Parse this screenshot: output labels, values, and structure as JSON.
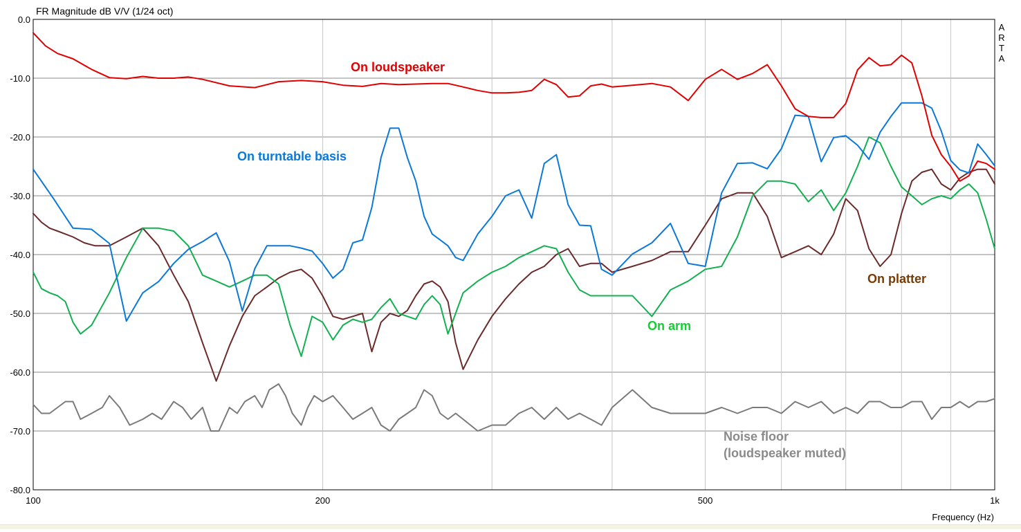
{
  "chart_data": {
    "type": "line",
    "title": "FR Magnitude dB V/V (1/24 oct)",
    "brand": "ARTA",
    "xlabel": "Frequency (Hz)",
    "x_scale": "log",
    "xlim": [
      100,
      1000
    ],
    "ylim": [
      -80,
      0
    ],
    "grid": true,
    "x_tick_labels": [
      {
        "value": 100,
        "label": "100"
      },
      {
        "value": 200,
        "label": "200"
      },
      {
        "value": 500,
        "label": "500"
      },
      {
        "value": 1000,
        "label": "1k"
      }
    ],
    "x_grid_values": [
      200,
      300,
      400,
      500,
      600,
      700,
      800,
      900
    ],
    "y_ticks": [
      0,
      -10,
      -20,
      -30,
      -40,
      -50,
      -60,
      -70,
      -80
    ],
    "y_tick_labels": [
      "0.0",
      "-10.0",
      "-20.0",
      "-30.0",
      "-40.0",
      "-50.0",
      "-60.0",
      "-70.0",
      "-80.0"
    ],
    "series": [
      {
        "name": "On loudspeaker",
        "color": "#e00000",
        "x": [
          100,
          103,
          106,
          110,
          115,
          120,
          125,
          130,
          135,
          140,
          145,
          150,
          160,
          170,
          180,
          190,
          200,
          210,
          220,
          230,
          240,
          250,
          260,
          270,
          280,
          290,
          300,
          310,
          320,
          330,
          340,
          350,
          360,
          370,
          380,
          390,
          400,
          420,
          440,
          460,
          480,
          500,
          520,
          540,
          560,
          580,
          600,
          620,
          640,
          660,
          680,
          700,
          720,
          740,
          760,
          780,
          800,
          820,
          840,
          860,
          880,
          900,
          920,
          940,
          960,
          980,
          1000
        ],
        "y": [
          -2.3,
          -4.5,
          -5.8,
          -6.7,
          -8.5,
          -9.9,
          -10.1,
          -9.7,
          -10,
          -10,
          -9.8,
          -10.2,
          -11.3,
          -11.6,
          -10.6,
          -10.4,
          -10.6,
          -11.2,
          -11.4,
          -10.9,
          -11.1,
          -11,
          -10.9,
          -10.9,
          -11.5,
          -12.1,
          -12.5,
          -12.5,
          -12.4,
          -12.1,
          -10.2,
          -11.1,
          -13.2,
          -13,
          -11.3,
          -11,
          -11.5,
          -11.2,
          -10.9,
          -11.5,
          -13.8,
          -10.2,
          -8.5,
          -10.2,
          -9.2,
          -7.7,
          -11.3,
          -15.2,
          -16.5,
          -16.7,
          -16.7,
          -14.3,
          -8.6,
          -6.5,
          -7.9,
          -7.7,
          -6.1,
          -7.4,
          -13,
          -19.7,
          -23,
          -25,
          -27.5,
          -26.6,
          -24.1,
          -24.5,
          -25.5
        ]
      },
      {
        "name": "On turntable basis",
        "color": "#0a78d8",
        "x": [
          100,
          105,
          110,
          115,
          120,
          125,
          130,
          135,
          140,
          145,
          150,
          155,
          160,
          165,
          170,
          175,
          180,
          185,
          190,
          195,
          200,
          205,
          210,
          215,
          220,
          225,
          230,
          235,
          240,
          245,
          250,
          255,
          260,
          265,
          270,
          275,
          280,
          290,
          300,
          310,
          320,
          330,
          340,
          350,
          360,
          370,
          380,
          390,
          400,
          420,
          440,
          460,
          480,
          500,
          520,
          540,
          560,
          580,
          600,
          620,
          640,
          660,
          680,
          700,
          720,
          740,
          760,
          780,
          800,
          820,
          840,
          860,
          880,
          900,
          920,
          940,
          960,
          980,
          1000
        ],
        "y": [
          -25.5,
          -30.5,
          -35.5,
          -35.7,
          -38.1,
          -51.3,
          -46.5,
          -44.6,
          -41.5,
          -39.1,
          -37.8,
          -36.3,
          -41.2,
          -49.6,
          -42.4,
          -38.5,
          -38.5,
          -38.5,
          -38.9,
          -39.4,
          -41.5,
          -44,
          -42.5,
          -38,
          -37.5,
          -32,
          -23.5,
          -18.5,
          -18.5,
          -23.5,
          -27.5,
          -33.5,
          -36.5,
          -37.5,
          -38.5,
          -40.5,
          -41,
          -36.5,
          -33.5,
          -30,
          -29,
          -33.8,
          -24.5,
          -23,
          -31.5,
          -35,
          -35.1,
          -42.5,
          -43.5,
          -39.9,
          -38,
          -34.7,
          -41.5,
          -42,
          -29.5,
          -24.5,
          -24.4,
          -25.4,
          -22,
          -16.3,
          -16.5,
          -24.2,
          -20.1,
          -19.8,
          -21.4,
          -23.8,
          -19.2,
          -16.5,
          -14.2,
          -14.2,
          -14.2,
          -15.1,
          -19,
          -24,
          -25.6,
          -26.1,
          -21.2,
          -23,
          -24.9
        ]
      },
      {
        "name": "On arm",
        "color": "#12b050",
        "x": [
          100,
          102,
          104,
          106,
          108,
          110,
          112,
          115,
          120,
          125,
          130,
          135,
          140,
          145,
          150,
          155,
          160,
          165,
          170,
          175,
          180,
          185,
          190,
          195,
          200,
          205,
          210,
          215,
          220,
          225,
          230,
          235,
          240,
          245,
          250,
          255,
          260,
          265,
          270,
          275,
          280,
          290,
          300,
          310,
          320,
          330,
          340,
          350,
          360,
          370,
          380,
          390,
          400,
          420,
          440,
          460,
          480,
          500,
          520,
          540,
          560,
          580,
          600,
          620,
          640,
          660,
          680,
          700,
          720,
          740,
          760,
          780,
          800,
          820,
          840,
          860,
          880,
          900,
          920,
          940,
          960,
          980,
          1000
        ],
        "y": [
          -43,
          -45.8,
          -46.5,
          -47,
          -48,
          -51.5,
          -53.5,
          -52,
          -46.5,
          -40.5,
          -35.5,
          -35.5,
          -36,
          -38.5,
          -43.5,
          -44.5,
          -45.5,
          -44.5,
          -43.5,
          -43.5,
          -45,
          -52,
          -57.3,
          -50.5,
          -51.5,
          -54.5,
          -52,
          -51,
          -51.5,
          -51,
          -49,
          -47.5,
          -50,
          -50.5,
          -51,
          -48.5,
          -47,
          -48.5,
          -53.5,
          -50,
          -46.5,
          -44.5,
          -43,
          -42,
          -40.5,
          -39.5,
          -38.5,
          -39,
          -43,
          -46,
          -47,
          -47,
          -47,
          -47,
          -50.5,
          -46,
          -44.5,
          -42.5,
          -42,
          -37,
          -30,
          -27.5,
          -27.5,
          -28,
          -31,
          -29,
          -32.5,
          -29.5,
          -25,
          -20,
          -21,
          -25,
          -28.5,
          -30,
          -31.5,
          -30.5,
          -30,
          -30.5,
          -29,
          -28,
          -29.5,
          -34,
          -39
        ]
      },
      {
        "name": "On platter",
        "color": "#6b2a2a",
        "x": [
          100,
          102,
          104,
          106,
          108,
          110,
          113,
          116,
          120,
          125,
          130,
          135,
          140,
          145,
          150,
          155,
          160,
          165,
          170,
          175,
          180,
          185,
          190,
          195,
          200,
          205,
          210,
          215,
          220,
          225,
          230,
          235,
          240,
          245,
          250,
          255,
          260,
          265,
          270,
          275,
          280,
          290,
          300,
          310,
          320,
          330,
          340,
          350,
          360,
          370,
          380,
          390,
          400,
          420,
          440,
          460,
          480,
          500,
          520,
          540,
          560,
          580,
          600,
          620,
          640,
          660,
          680,
          700,
          720,
          740,
          760,
          780,
          800,
          820,
          840,
          860,
          880,
          900,
          920,
          940,
          960,
          980,
          1000
        ],
        "y": [
          -33,
          -34.5,
          -35.5,
          -36,
          -36.5,
          -37,
          -38,
          -38.5,
          -38.5,
          -37,
          -35.5,
          -38.5,
          -43.5,
          -48,
          -55,
          -61.5,
          -55.5,
          -50.5,
          -47,
          -45.5,
          -44,
          -43,
          -42.5,
          -44,
          -47,
          -50.5,
          -51,
          -50.5,
          -50,
          -56.5,
          -51.5,
          -50,
          -50.5,
          -49.5,
          -47,
          -45,
          -44.5,
          -45.5,
          -48,
          -55,
          -59.5,
          -54.5,
          -50.5,
          -47.5,
          -45,
          -43,
          -42,
          -40,
          -39,
          -42,
          -41.5,
          -41.5,
          -43,
          -42,
          -41,
          -39.5,
          -39.5,
          -35,
          -30.5,
          -29.5,
          -29.5,
          -33.5,
          -40.5,
          -39.5,
          -38.5,
          -40,
          -36.5,
          -30.5,
          -32.5,
          -39,
          -42,
          -40,
          -33,
          -27.5,
          -26,
          -25.5,
          -28,
          -29,
          -27,
          -26,
          -25.5,
          -25.5,
          -28
        ]
      },
      {
        "name": "Noise floor",
        "color": "#7a7a7a",
        "x": [
          100,
          102,
          104,
          106,
          108,
          110,
          112,
          115,
          118,
          120,
          123,
          126,
          130,
          133,
          136,
          140,
          143,
          146,
          150,
          153,
          156,
          160,
          163,
          166,
          170,
          173,
          176,
          180,
          183,
          186,
          190,
          193,
          196,
          200,
          205,
          210,
          215,
          220,
          225,
          230,
          235,
          240,
          245,
          250,
          255,
          260,
          265,
          270,
          275,
          280,
          290,
          300,
          310,
          320,
          330,
          340,
          350,
          360,
          370,
          380,
          390,
          400,
          420,
          440,
          460,
          480,
          500,
          520,
          540,
          560,
          580,
          600,
          620,
          640,
          660,
          680,
          700,
          720,
          740,
          760,
          780,
          800,
          820,
          840,
          860,
          880,
          900,
          920,
          940,
          960,
          980,
          1000
        ],
        "y": [
          -65.5,
          -67,
          -67,
          -66,
          -65,
          -65,
          -68,
          -67,
          -66,
          -64,
          -66,
          -69,
          -68,
          -67,
          -68,
          -65,
          -66,
          -68,
          -66,
          -70,
          -70,
          -66,
          -67,
          -65,
          -64,
          -66,
          -63,
          -62,
          -64,
          -67,
          -69,
          -66,
          -64,
          -65,
          -64,
          -66,
          -68,
          -67,
          -66,
          -69,
          -70,
          -68,
          -67,
          -66,
          -63,
          -64,
          -67,
          -68,
          -67,
          -68,
          -70,
          -69,
          -69,
          -67,
          -66,
          -68,
          -66,
          -68,
          -67,
          -68,
          -69,
          -66,
          -63,
          -66,
          -67,
          -67,
          -67,
          -66,
          -67,
          -66,
          -66,
          -67,
          -65,
          -66,
          -65,
          -67,
          -66,
          -67,
          -65,
          -65,
          -66,
          -66,
          -65,
          -65,
          -68,
          -66,
          -66,
          -65,
          -66,
          -65,
          -65,
          -64.5
        ]
      }
    ],
    "annotations": [
      {
        "text": "On loudspeaker",
        "color": "#e00000"
      },
      {
        "text": "On turntable basis",
        "color": "#0a78d8"
      },
      {
        "text": "On arm",
        "color": "#12d030"
      },
      {
        "text": "On platter",
        "color": "#7a3a00"
      },
      {
        "text": "Noise floor",
        "color": "#8a8a8a"
      },
      {
        "text": "(loudspeaker muted)",
        "color": "#8a8a8a"
      }
    ]
  }
}
